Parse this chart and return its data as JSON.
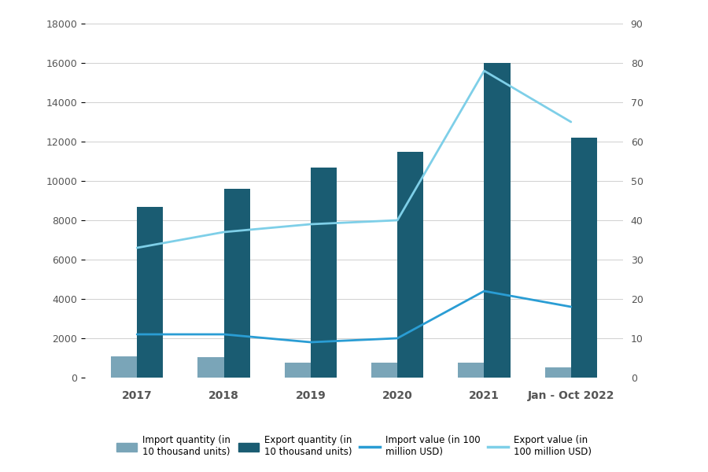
{
  "years": [
    "2017",
    "2018",
    "2019",
    "2020",
    "2021",
    "Jan - Oct 2022"
  ],
  "import_quantity": [
    1100,
    1050,
    780,
    780,
    760,
    530
  ],
  "export_quantity": [
    8700,
    9600,
    10700,
    11500,
    16000,
    12200
  ],
  "import_value": [
    11,
    11,
    9,
    10,
    22,
    18
  ],
  "export_value": [
    33,
    37,
    39,
    40,
    78,
    65
  ],
  "bar_color_import": "#7aa5b8",
  "bar_color_export": "#1a5c72",
  "line_color_import": "#2a9dd4",
  "line_color_export": "#7ecfe8",
  "background_color": "#ffffff",
  "ylim_left": [
    0,
    18000
  ],
  "ylim_right": [
    0,
    90
  ],
  "yticks_left": [
    0,
    2000,
    4000,
    6000,
    8000,
    10000,
    12000,
    14000,
    16000,
    18000
  ],
  "yticks_right": [
    0,
    10,
    20,
    30,
    40,
    50,
    60,
    70,
    80,
    90
  ],
  "legend_import_qty": "Import quantity (in\n10 thousand units)",
  "legend_export_qty": "Export quantity (in\n10 thousand units)",
  "legend_import_val": "Import value (in 100\nmillion USD)",
  "legend_export_val": "Export value (in\n100 million USD)",
  "bar_width": 0.3,
  "grid_color": "#d0d0d0",
  "tick_label_color": "#555555",
  "tick_label_size": 9,
  "x_label_size": 10,
  "x_label_weight": "bold"
}
